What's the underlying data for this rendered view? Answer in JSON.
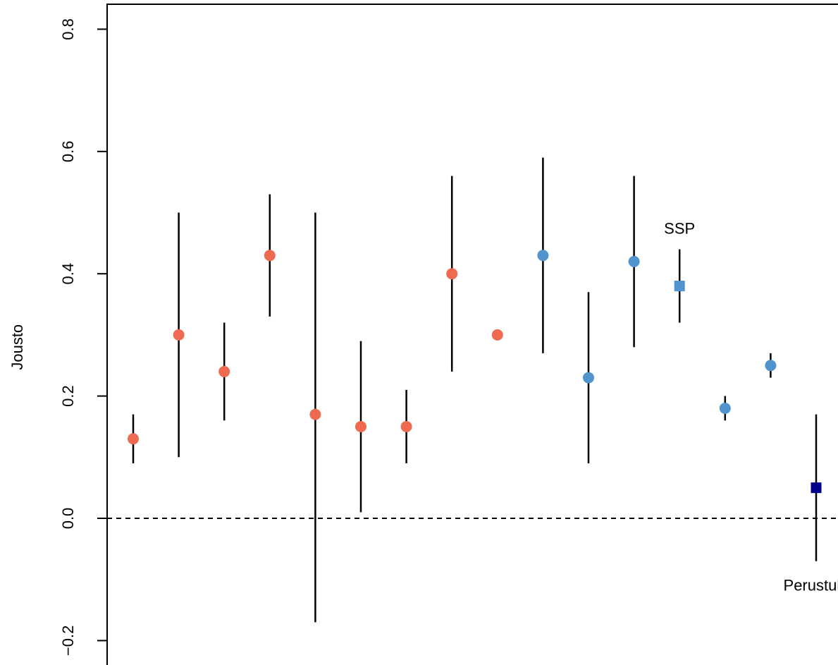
{
  "chart_data": {
    "type": "scatter",
    "ylabel": "Jousto",
    "ylim": [
      -0.22,
      0.82
    ],
    "yticks": [
      -0.2,
      0.0,
      0.2,
      0.4,
      0.6,
      0.8
    ],
    "ytick_labels": [
      "−0.2",
      "0.0",
      "0.2",
      "0.4",
      "0.6",
      "0.8"
    ],
    "reference_line": {
      "y": 0.0,
      "style": "dashed"
    },
    "grid": false,
    "colors": {
      "group_a": "#EE6A50",
      "group_b": "#4F94CD",
      "ssp": "#4F94CD",
      "perustulo": "#00008B",
      "errorbar": "#000000"
    },
    "points": [
      {
        "x": 1,
        "y": 0.13,
        "lower": 0.09,
        "upper": 0.17,
        "color": "#EE6A50",
        "shape": "circle"
      },
      {
        "x": 2,
        "y": 0.3,
        "lower": 0.1,
        "upper": 0.5,
        "color": "#EE6A50",
        "shape": "circle"
      },
      {
        "x": 3,
        "y": 0.24,
        "lower": 0.16,
        "upper": 0.32,
        "color": "#EE6A50",
        "shape": "circle"
      },
      {
        "x": 4,
        "y": 0.43,
        "lower": 0.33,
        "upper": 0.53,
        "color": "#EE6A50",
        "shape": "circle"
      },
      {
        "x": 5,
        "y": 0.17,
        "lower": -0.17,
        "upper": 0.5,
        "color": "#EE6A50",
        "shape": "circle"
      },
      {
        "x": 6,
        "y": 0.15,
        "lower": 0.01,
        "upper": 0.29,
        "color": "#EE6A50",
        "shape": "circle"
      },
      {
        "x": 7,
        "y": 0.15,
        "lower": 0.09,
        "upper": 0.21,
        "color": "#EE6A50",
        "shape": "circle"
      },
      {
        "x": 8,
        "y": 0.4,
        "lower": 0.24,
        "upper": 0.56,
        "color": "#EE6A50",
        "shape": "circle"
      },
      {
        "x": 9,
        "y": 0.3,
        "color": "#EE6A50",
        "shape": "circle"
      },
      {
        "x": 10,
        "y": 0.43,
        "lower": 0.27,
        "upper": 0.59,
        "color": "#4F94CD",
        "shape": "circle"
      },
      {
        "x": 11,
        "y": 0.23,
        "lower": 0.09,
        "upper": 0.37,
        "color": "#4F94CD",
        "shape": "circle"
      },
      {
        "x": 12,
        "y": 0.42,
        "lower": 0.28,
        "upper": 0.56,
        "color": "#4F94CD",
        "shape": "circle"
      },
      {
        "x": 13,
        "y": 0.38,
        "lower": 0.32,
        "upper": 0.44,
        "color": "#4F94CD",
        "shape": "square",
        "label": "SSP",
        "label_position": "above"
      },
      {
        "x": 14,
        "y": 0.18,
        "lower": 0.16,
        "upper": 0.2,
        "color": "#4F94CD",
        "shape": "circle"
      },
      {
        "x": 15,
        "y": 0.25,
        "lower": 0.23,
        "upper": 0.27,
        "color": "#4F94CD",
        "shape": "circle"
      },
      {
        "x": 16,
        "y": 0.05,
        "lower": -0.07,
        "upper": 0.17,
        "color": "#00008B",
        "shape": "square",
        "label": "Perustulo",
        "label_position": "below"
      }
    ]
  }
}
